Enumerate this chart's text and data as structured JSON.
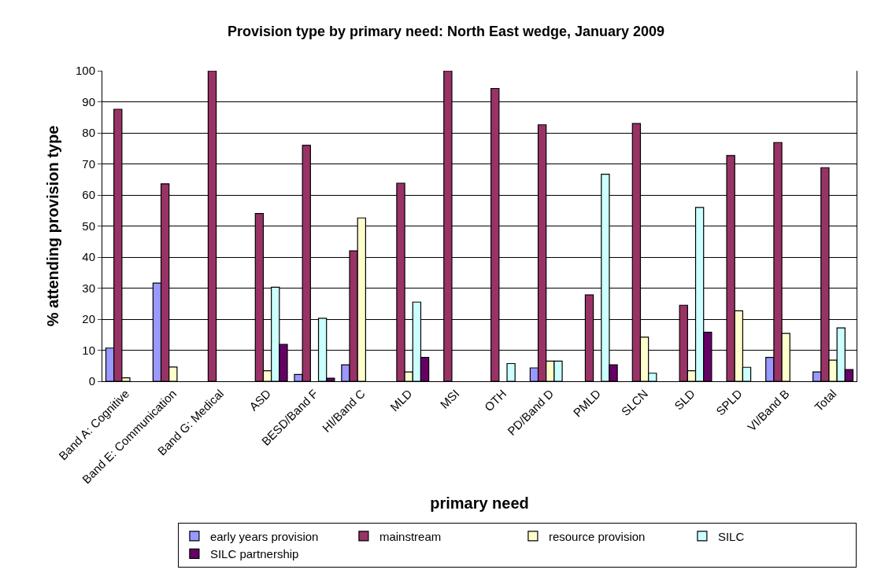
{
  "chart_data": {
    "type": "bar",
    "title": "Provision type by primary need: North East wedge, January 2009",
    "xlabel": "primary need",
    "ylabel": "% attending provision type",
    "categories": [
      "Band A: Cognitive",
      "Band E: Communication",
      "Band G: Medical",
      "ASD",
      "BESD/Band F",
      "HI/Band C",
      "MLD",
      "MSI",
      "OTH",
      "PD/Band D",
      "PMLD",
      "SLCN",
      "SLD",
      "SPLD",
      "VI/Band B",
      "Total"
    ],
    "series": [
      {
        "name": "early years provision",
        "color": "#9999ff",
        "values": [
          10.7,
          31.6,
          null,
          null,
          2.2,
          5.3,
          null,
          null,
          null,
          4.3,
          null,
          null,
          null,
          null,
          7.7,
          3.0
        ]
      },
      {
        "name": "mainstream",
        "color": "#993366",
        "values": [
          87.6,
          63.6,
          100,
          54.0,
          76.0,
          42.0,
          63.8,
          100,
          94.3,
          82.6,
          27.8,
          83.0,
          24.5,
          72.7,
          76.9,
          68.8
        ]
      },
      {
        "name": "resource provision",
        "color": "#ffffcc",
        "values": [
          1.1,
          4.6,
          null,
          3.4,
          null,
          52.6,
          3.0,
          null,
          null,
          6.5,
          null,
          14.2,
          3.4,
          22.7,
          15.4,
          6.8
        ]
      },
      {
        "name": "SILC",
        "color": "#ccffff",
        "values": [
          null,
          null,
          null,
          30.3,
          20.3,
          null,
          25.5,
          null,
          5.7,
          6.5,
          66.7,
          2.6,
          56.0,
          4.5,
          null,
          17.2
        ]
      },
      {
        "name": "SILC partnership",
        "color": "#660066",
        "values": [
          null,
          null,
          null,
          11.9,
          1.0,
          null,
          7.7,
          null,
          null,
          null,
          5.3,
          null,
          15.8,
          null,
          null,
          3.8
        ]
      }
    ],
    "ylim": [
      0,
      100
    ],
    "yticks": [
      0,
      10,
      20,
      30,
      40,
      50,
      60,
      70,
      80,
      90,
      100
    ],
    "grid": "y",
    "legend": "bottom"
  }
}
